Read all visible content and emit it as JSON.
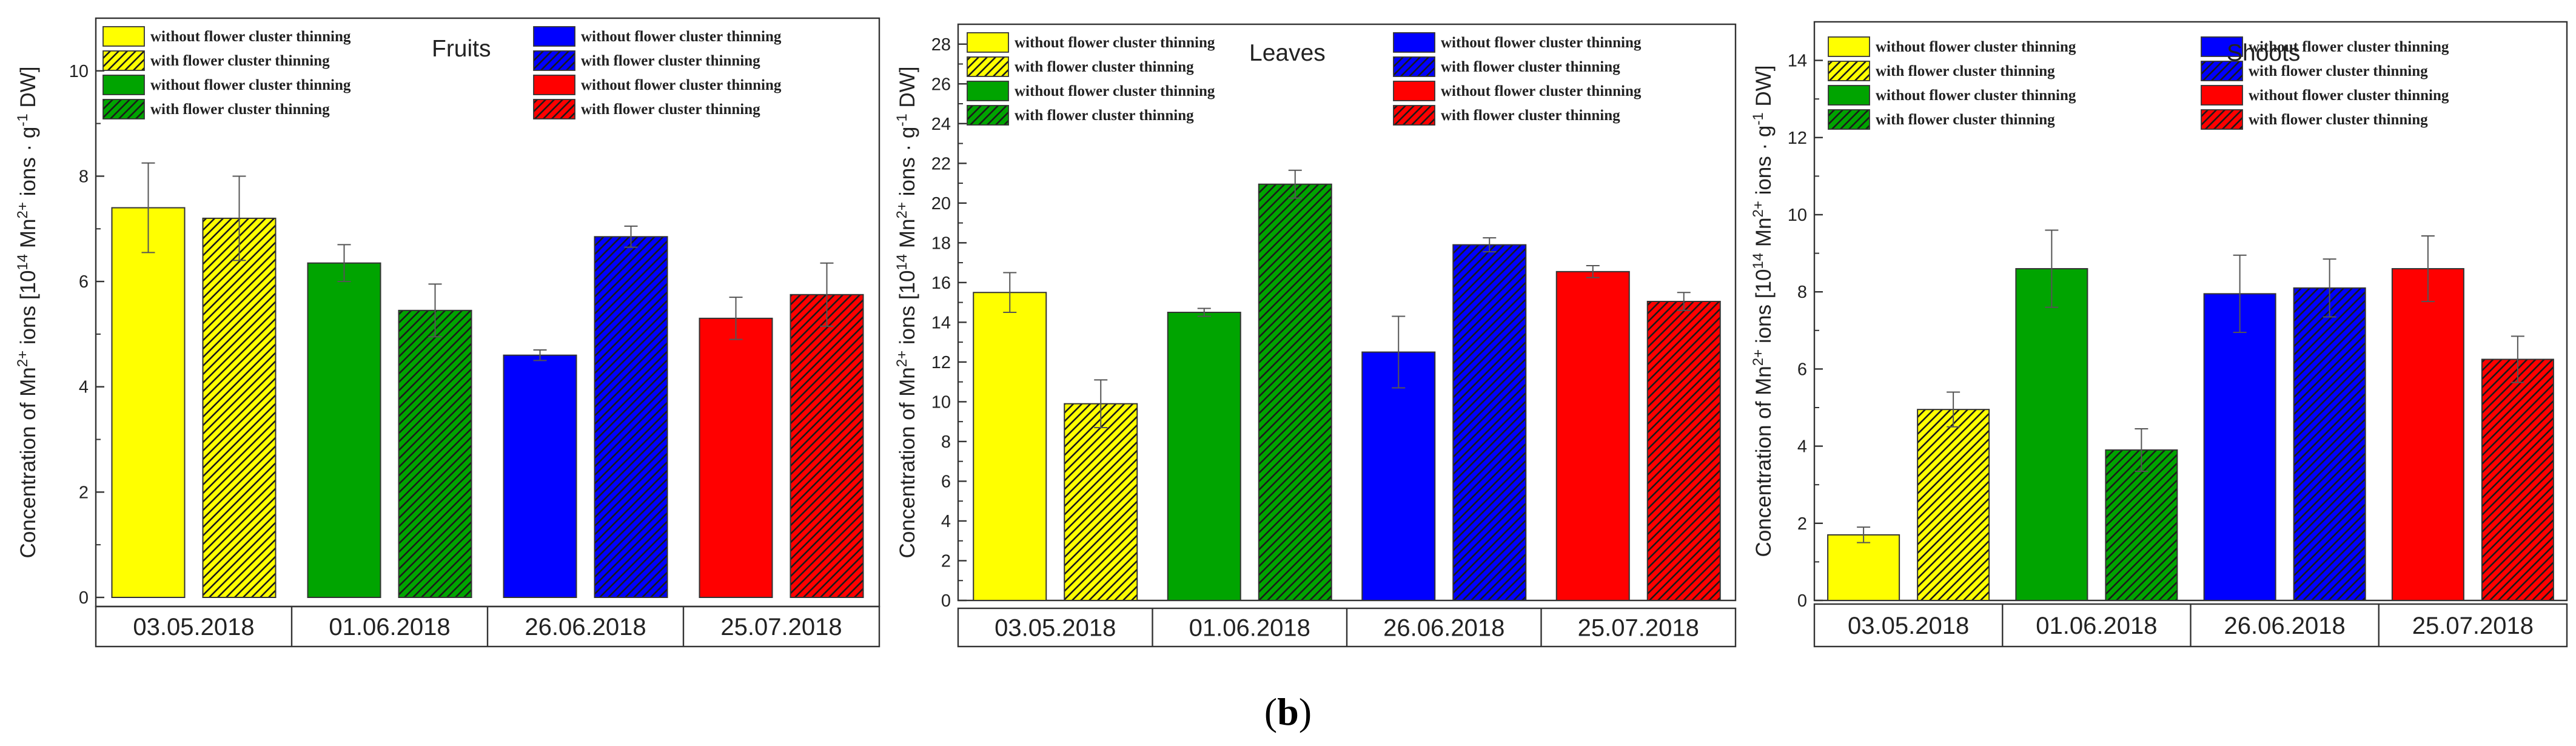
{
  "caption": {
    "open": "(",
    "letter": "b",
    "close": ")"
  },
  "colors": {
    "yellow": "#ffff00",
    "green": "#00a400",
    "blue": "#0000ff",
    "red": "#ff0000",
    "hatch": "#1a1a1a",
    "axis": "#333333"
  },
  "legend": {
    "without": "without flower cluster thinning",
    "with": "with flower cluster thinning"
  },
  "chart_data": [
    {
      "type": "bar",
      "title": "Fruits",
      "ylabel": {
        "pre": "Concentration of Mn",
        "sup1": "2+",
        "mid": " ions [10",
        "sup2": "14",
        "mid2": " Mn",
        "sup3": "2+",
        "mid3": " ions · g",
        "sup4": "-1",
        "post": " DW]"
      },
      "categories": [
        "03.05.2018",
        "01.06.2018",
        "26.06.2018",
        "25.07.2018"
      ],
      "ylim": [
        0,
        11
      ],
      "yticks": [
        0,
        2,
        4,
        6,
        8,
        10
      ],
      "series": [
        {
          "name": "without flower cluster thinning",
          "thinning": false,
          "values": [
            7.4,
            6.35,
            4.6,
            5.3
          ],
          "errors": [
            0.85,
            0.35,
            0.1,
            0.4
          ]
        },
        {
          "name": "with flower cluster thinning",
          "thinning": true,
          "values": [
            7.2,
            5.45,
            6.85,
            5.75
          ],
          "errors": [
            0.8,
            0.5,
            0.2,
            0.6
          ]
        }
      ]
    },
    {
      "type": "bar",
      "title": "Leaves",
      "ylabel": {
        "pre": "Concentration of Mn",
        "sup1": "2+",
        "mid": " ions [10",
        "sup2": "14",
        "mid2": " Mn",
        "sup3": "2+",
        "mid3": " ions · g",
        "sup4": "-1",
        "post": " DW]"
      },
      "categories": [
        "03.05.2018",
        "01.06.2018",
        "26.06.2018",
        "25.07.2018"
      ],
      "ylim": [
        0,
        29
      ],
      "yticks": [
        0,
        2,
        4,
        6,
        8,
        10,
        12,
        14,
        16,
        18,
        20,
        22,
        24,
        26,
        28
      ],
      "series": [
        {
          "name": "without flower cluster thinning",
          "thinning": false,
          "values": [
            15.5,
            14.5,
            12.5,
            16.55
          ],
          "errors": [
            1.0,
            0.2,
            1.8,
            0.3
          ]
        },
        {
          "name": "with flower cluster thinning",
          "thinning": true,
          "values": [
            9.9,
            20.95,
            17.9,
            15.05
          ],
          "errors": [
            1.2,
            0.7,
            0.35,
            0.45
          ]
        }
      ]
    },
    {
      "type": "bar",
      "title": "Shoots",
      "ylabel": {
        "pre": "Concentration of Mn",
        "sup1": "2+",
        "mid": " ions [10",
        "sup2": "14",
        "mid2": " Mn",
        "sup3": "2+",
        "mid3": " ions · g",
        "sup4": "-1",
        "post": " DW]"
      },
      "categories": [
        "03.05.2018",
        "01.06.2018",
        "26.06.2018",
        "25.07.2018"
      ],
      "ylim": [
        0,
        15
      ],
      "yticks": [
        0,
        2,
        4,
        6,
        8,
        10,
        12,
        14
      ],
      "series": [
        {
          "name": "without flower cluster thinning",
          "thinning": false,
          "values": [
            1.7,
            8.6,
            7.95,
            8.6
          ],
          "errors": [
            0.2,
            1.0,
            1.0,
            0.85
          ]
        },
        {
          "name": "with flower cluster thinning",
          "thinning": true,
          "values": [
            4.95,
            3.9,
            8.1,
            6.25
          ],
          "errors": [
            0.45,
            0.55,
            0.75,
            0.6
          ]
        }
      ]
    }
  ]
}
